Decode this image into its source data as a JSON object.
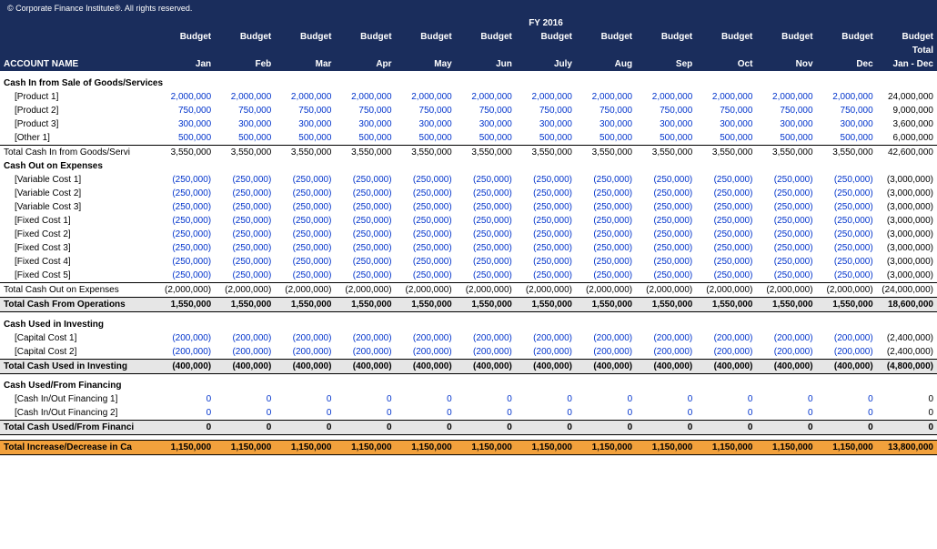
{
  "copyright": "© Corporate Finance Institute®. All rights reserved.",
  "fy_label": "FY 2016",
  "col_account": "ACCOUNT NAME",
  "col_budget": "Budget",
  "col_total1": "Budget",
  "col_total2": "Total",
  "col_total3": "Jan - Dec",
  "months": [
    "Jan",
    "Feb",
    "Mar",
    "Apr",
    "May",
    "Jun",
    "July",
    "Aug",
    "Sep",
    "Oct",
    "Nov",
    "Dec"
  ],
  "colors": {
    "header_bg": "#1a2d5c",
    "input_blue": "#0033cc",
    "total_gray": "#e6e6e6",
    "highlight_orange": "#f2a13c"
  },
  "sections": {
    "cash_in": {
      "title": "Cash In from Sale of Goods/Services",
      "rows": [
        {
          "label": "[Product 1]",
          "m": "2,000,000",
          "t": "24,000,000"
        },
        {
          "label": "[Product 2]",
          "m": "750,000",
          "t": "9,000,000"
        },
        {
          "label": "[Product 3]",
          "m": "300,000",
          "t": "3,600,000"
        },
        {
          "label": "[Other 1]",
          "m": "500,000",
          "t": "6,000,000"
        }
      ],
      "sum": {
        "label": "Total Cash In from Goods/Servi",
        "m": "3,550,000",
        "t": "42,600,000"
      }
    },
    "cash_out": {
      "title": "Cash Out on Expenses",
      "rows": [
        {
          "label": "[Variable Cost 1]",
          "m": "(250,000)",
          "t": "(3,000,000)"
        },
        {
          "label": "[Variable Cost 2]",
          "m": "(250,000)",
          "t": "(3,000,000)"
        },
        {
          "label": "[Variable Cost 3]",
          "m": "(250,000)",
          "t": "(3,000,000)"
        },
        {
          "label": "[Fixed Cost 1]",
          "m": "(250,000)",
          "t": "(3,000,000)"
        },
        {
          "label": "[Fixed Cost 2]",
          "m": "(250,000)",
          "t": "(3,000,000)"
        },
        {
          "label": "[Fixed Cost 3]",
          "m": "(250,000)",
          "t": "(3,000,000)"
        },
        {
          "label": "[Fixed Cost 4]",
          "m": "(250,000)",
          "t": "(3,000,000)"
        },
        {
          "label": "[Fixed Cost 5]",
          "m": "(250,000)",
          "t": "(3,000,000)"
        }
      ],
      "sum": {
        "label": "Total Cash Out on Expenses",
        "m": "(2,000,000)",
        "t": "(24,000,000)"
      }
    },
    "ops_total": {
      "label": "Total Cash From Operations",
      "m": "1,550,000",
      "t": "18,600,000"
    },
    "investing": {
      "title": "Cash Used in Investing",
      "rows": [
        {
          "label": "[Capital Cost 1]",
          "m": "(200,000)",
          "t": "(2,400,000)"
        },
        {
          "label": "[Capital Cost 2]",
          "m": "(200,000)",
          "t": "(2,400,000)"
        }
      ],
      "sum": {
        "label": "Total Cash Used in Investing",
        "m": "(400,000)",
        "t": "(4,800,000)"
      }
    },
    "financing": {
      "title": "Cash Used/From Financing",
      "rows": [
        {
          "label": "[Cash In/Out Financing 1]",
          "m": "0",
          "t": "0"
        },
        {
          "label": "[Cash In/Out Financing 2]",
          "m": "0",
          "t": "0"
        }
      ],
      "sum": {
        "label": "Total Cash Used/From Financi",
        "m": "0",
        "t": "0"
      }
    },
    "net": {
      "label": "Total Increase/Decrease in Ca",
      "m": "1,150,000",
      "t": "13,800,000"
    }
  }
}
